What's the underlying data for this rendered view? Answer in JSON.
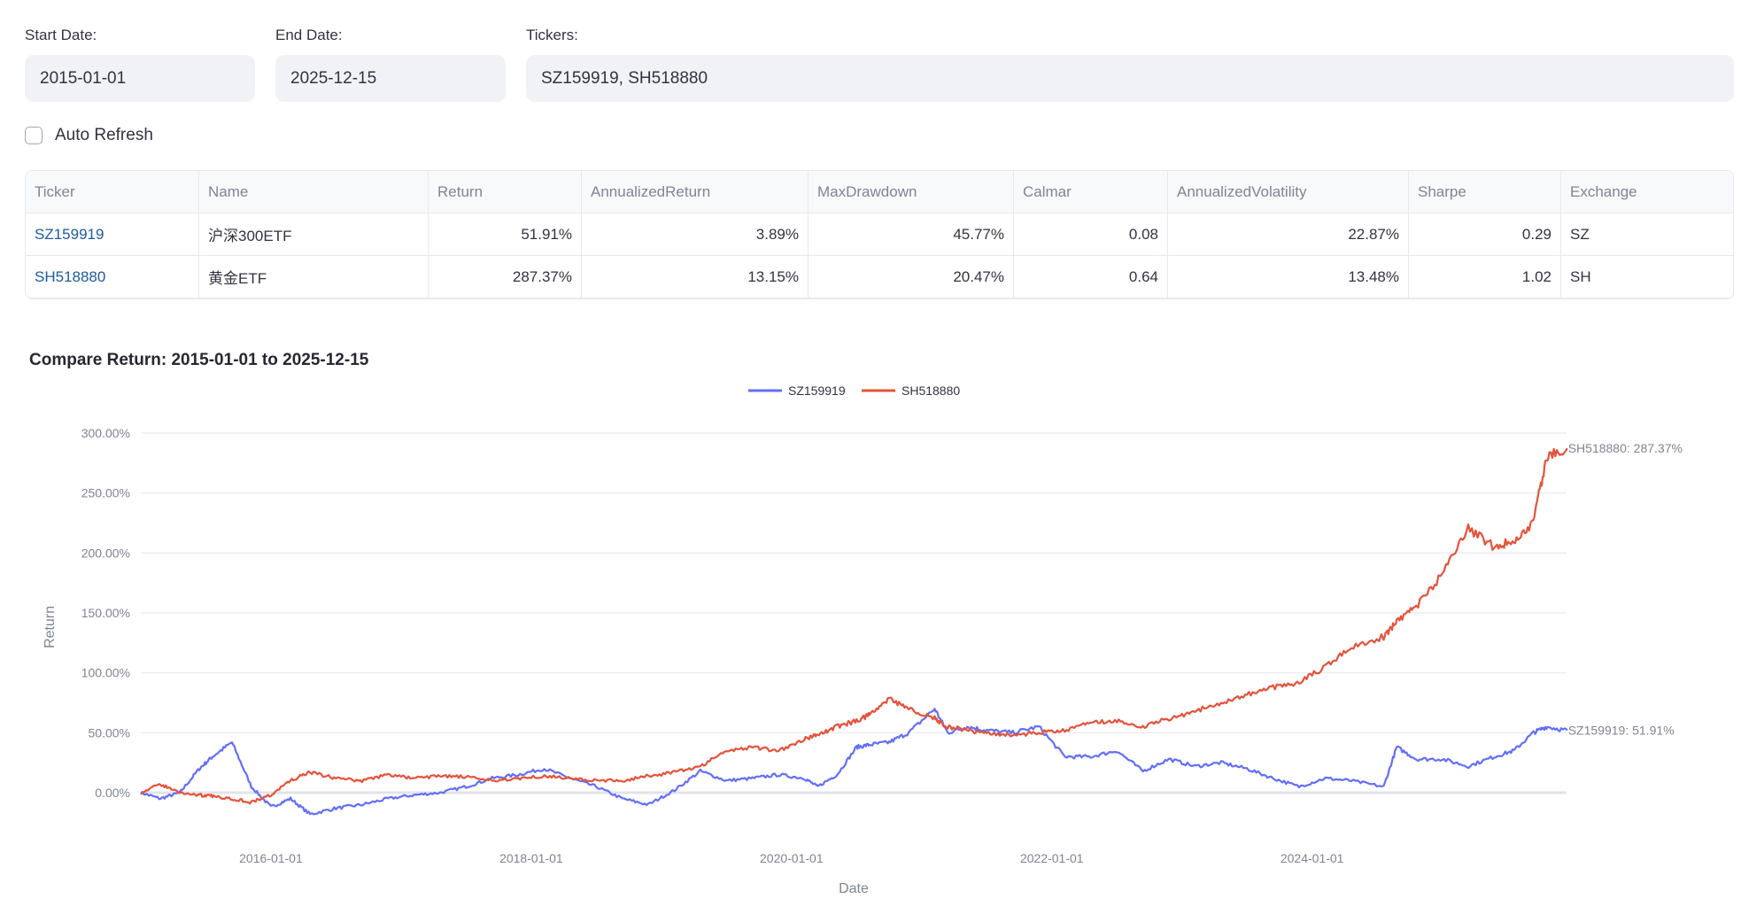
{
  "controls": {
    "start_date_label": "Start Date:",
    "start_date_value": "2015-01-01",
    "end_date_label": "End Date:",
    "end_date_value": "2025-12-15",
    "tickers_label": "Tickers:",
    "tickers_value": "SZ159919, SH518880",
    "auto_refresh_label": "Auto Refresh",
    "auto_refresh_checked": false
  },
  "table": {
    "columns": [
      "Ticker",
      "Name",
      "Return",
      "AnnualizedReturn",
      "MaxDrawdown",
      "Calmar",
      "AnnualizedVolatility",
      "Sharpe",
      "Exchange"
    ],
    "rows": [
      [
        "SZ159919",
        "沪深300ETF",
        "51.91%",
        "3.89%",
        "45.77%",
        "0.08",
        "22.87%",
        "0.29",
        "SZ"
      ],
      [
        "SH518880",
        "黄金ETF",
        "287.37%",
        "13.15%",
        "20.47%",
        "0.64",
        "13.48%",
        "1.02",
        "SH"
      ]
    ]
  },
  "colors": {
    "SZ159919": "#636efa",
    "SH518880": "#e4533b",
    "link": "#1e5aa0",
    "input_bg": "#f0f2f6"
  },
  "chart_data": {
    "type": "line",
    "title": "Compare Return: 2015-01-01 to 2025-12-15",
    "xlabel": "Date",
    "ylabel": "Return",
    "x_ticks": [
      "2016-01-01",
      "2018-01-01",
      "2020-01-01",
      "2022-01-01",
      "2024-01-01"
    ],
    "y_ticks": [
      "0.00%",
      "50.00%",
      "100.00%",
      "150.00%",
      "200.00%",
      "250.00%",
      "300.00%"
    ],
    "xlim": [
      "2015-01-01",
      "2025-12-15"
    ],
    "ylim": [
      -0.25,
      3.0
    ],
    "grid": true,
    "legend_position": "top-center",
    "x": [
      2015.0,
      2015.15,
      2015.3,
      2015.45,
      2015.55,
      2015.7,
      2015.85,
      2016.0,
      2016.15,
      2016.3,
      2016.5,
      2016.7,
      2016.9,
      2017.1,
      2017.3,
      2017.5,
      2017.7,
      2017.9,
      2018.1,
      2018.3,
      2018.5,
      2018.7,
      2018.9,
      2019.1,
      2019.3,
      2019.5,
      2019.7,
      2019.9,
      2020.1,
      2020.2,
      2020.35,
      2020.5,
      2020.6,
      2020.75,
      2020.9,
      2021.1,
      2021.2,
      2021.35,
      2021.5,
      2021.7,
      2021.9,
      2022.1,
      2022.3,
      2022.5,
      2022.7,
      2022.9,
      2023.1,
      2023.3,
      2023.5,
      2023.7,
      2023.9,
      2024.1,
      2024.3,
      2024.55,
      2024.65,
      2024.8,
      2025.0,
      2025.2,
      2025.4,
      2025.55,
      2025.7,
      2025.8,
      2025.96
    ],
    "series": [
      {
        "name": "SZ159919",
        "end_label": "SZ159919: 51.91%",
        "values": [
          0.0,
          -0.05,
          0.0,
          0.2,
          0.3,
          0.42,
          0.05,
          -0.12,
          -0.05,
          -0.18,
          -0.13,
          -0.1,
          -0.05,
          -0.02,
          0.0,
          0.05,
          0.12,
          0.15,
          0.2,
          0.12,
          0.05,
          -0.05,
          -0.1,
          0.02,
          0.18,
          0.1,
          0.12,
          0.15,
          0.12,
          0.05,
          0.15,
          0.38,
          0.4,
          0.42,
          0.5,
          0.7,
          0.5,
          0.55,
          0.52,
          0.5,
          0.55,
          0.3,
          0.3,
          0.35,
          0.18,
          0.28,
          0.22,
          0.25,
          0.2,
          0.12,
          0.05,
          0.12,
          0.1,
          0.05,
          0.38,
          0.28,
          0.28,
          0.22,
          0.3,
          0.35,
          0.5,
          0.55,
          0.5191
        ]
      },
      {
        "name": "SH518880",
        "end_label": "SH518880: 287.37%",
        "values": [
          0.0,
          0.07,
          0.0,
          -0.02,
          -0.03,
          -0.05,
          -0.08,
          -0.02,
          0.1,
          0.17,
          0.12,
          0.1,
          0.15,
          0.12,
          0.14,
          0.13,
          0.1,
          0.12,
          0.14,
          0.12,
          0.1,
          0.1,
          0.14,
          0.17,
          0.22,
          0.35,
          0.38,
          0.35,
          0.45,
          0.48,
          0.55,
          0.6,
          0.65,
          0.78,
          0.7,
          0.62,
          0.55,
          0.52,
          0.5,
          0.48,
          0.5,
          0.52,
          0.58,
          0.6,
          0.55,
          0.62,
          0.68,
          0.75,
          0.82,
          0.88,
          0.92,
          1.05,
          1.22,
          1.3,
          1.42,
          1.55,
          1.82,
          2.2,
          2.05,
          2.1,
          2.25,
          2.8,
          2.8737
        ]
      }
    ]
  }
}
